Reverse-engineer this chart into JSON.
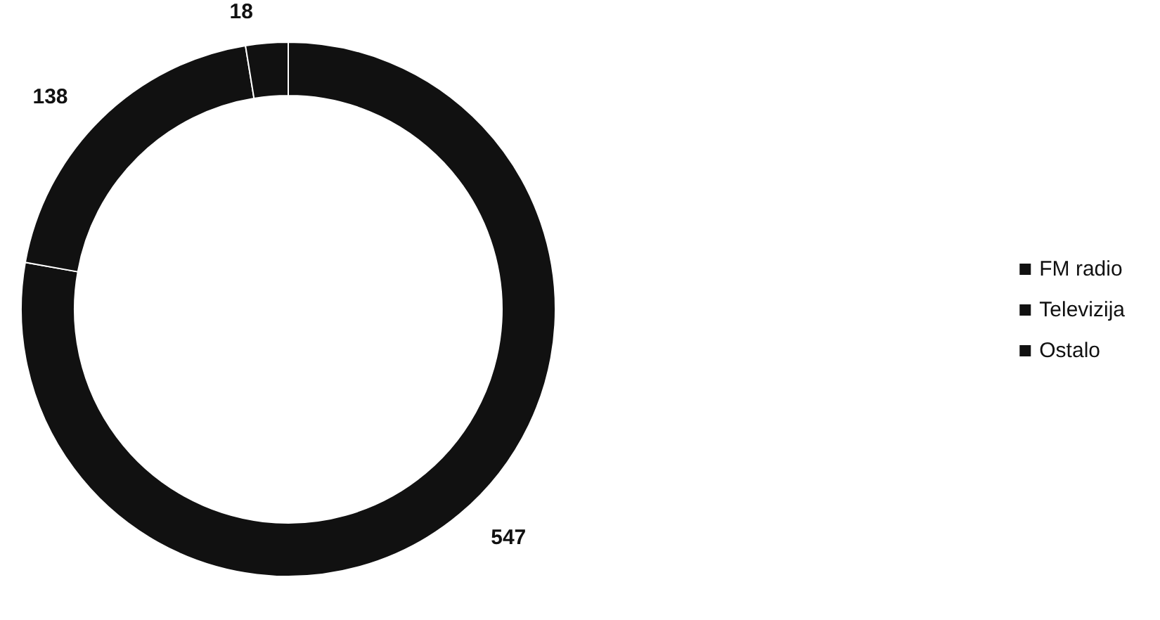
{
  "chart_data": {
    "type": "donut",
    "categories": [
      "FM radio",
      "Televizija",
      "Ostalo"
    ],
    "values": [
      547,
      138,
      18
    ],
    "colors": [
      "#111111",
      "#111111",
      "#111111"
    ],
    "data_labels": true,
    "legend": "right"
  }
}
